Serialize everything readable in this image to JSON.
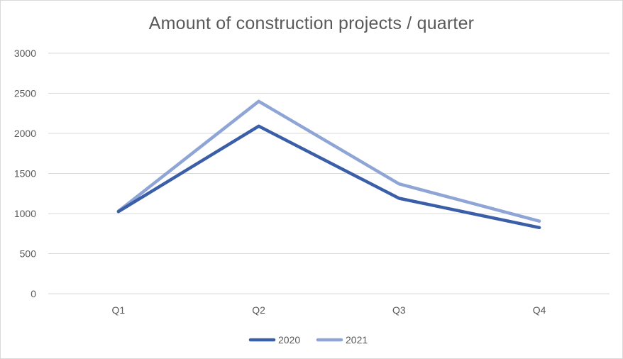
{
  "chart_data": {
    "type": "line",
    "title": "Amount of construction projects / quarter",
    "categories": [
      "Q1",
      "Q2",
      "Q3",
      "Q4"
    ],
    "series": [
      {
        "name": "2020",
        "values": [
          1025,
          2090,
          1190,
          825
        ],
        "color": "#3a5fa8"
      },
      {
        "name": "2021",
        "values": [
          1030,
          2400,
          1370,
          905
        ],
        "color": "#8ea5d6"
      }
    ],
    "ylim": [
      0,
      3000
    ],
    "yticks": [
      0,
      500,
      1000,
      1500,
      2000,
      2500,
      3000
    ],
    "grid": true,
    "legend": "bottom-center"
  },
  "colors": {
    "grid": "#d9d9d9",
    "text": "#595959"
  }
}
